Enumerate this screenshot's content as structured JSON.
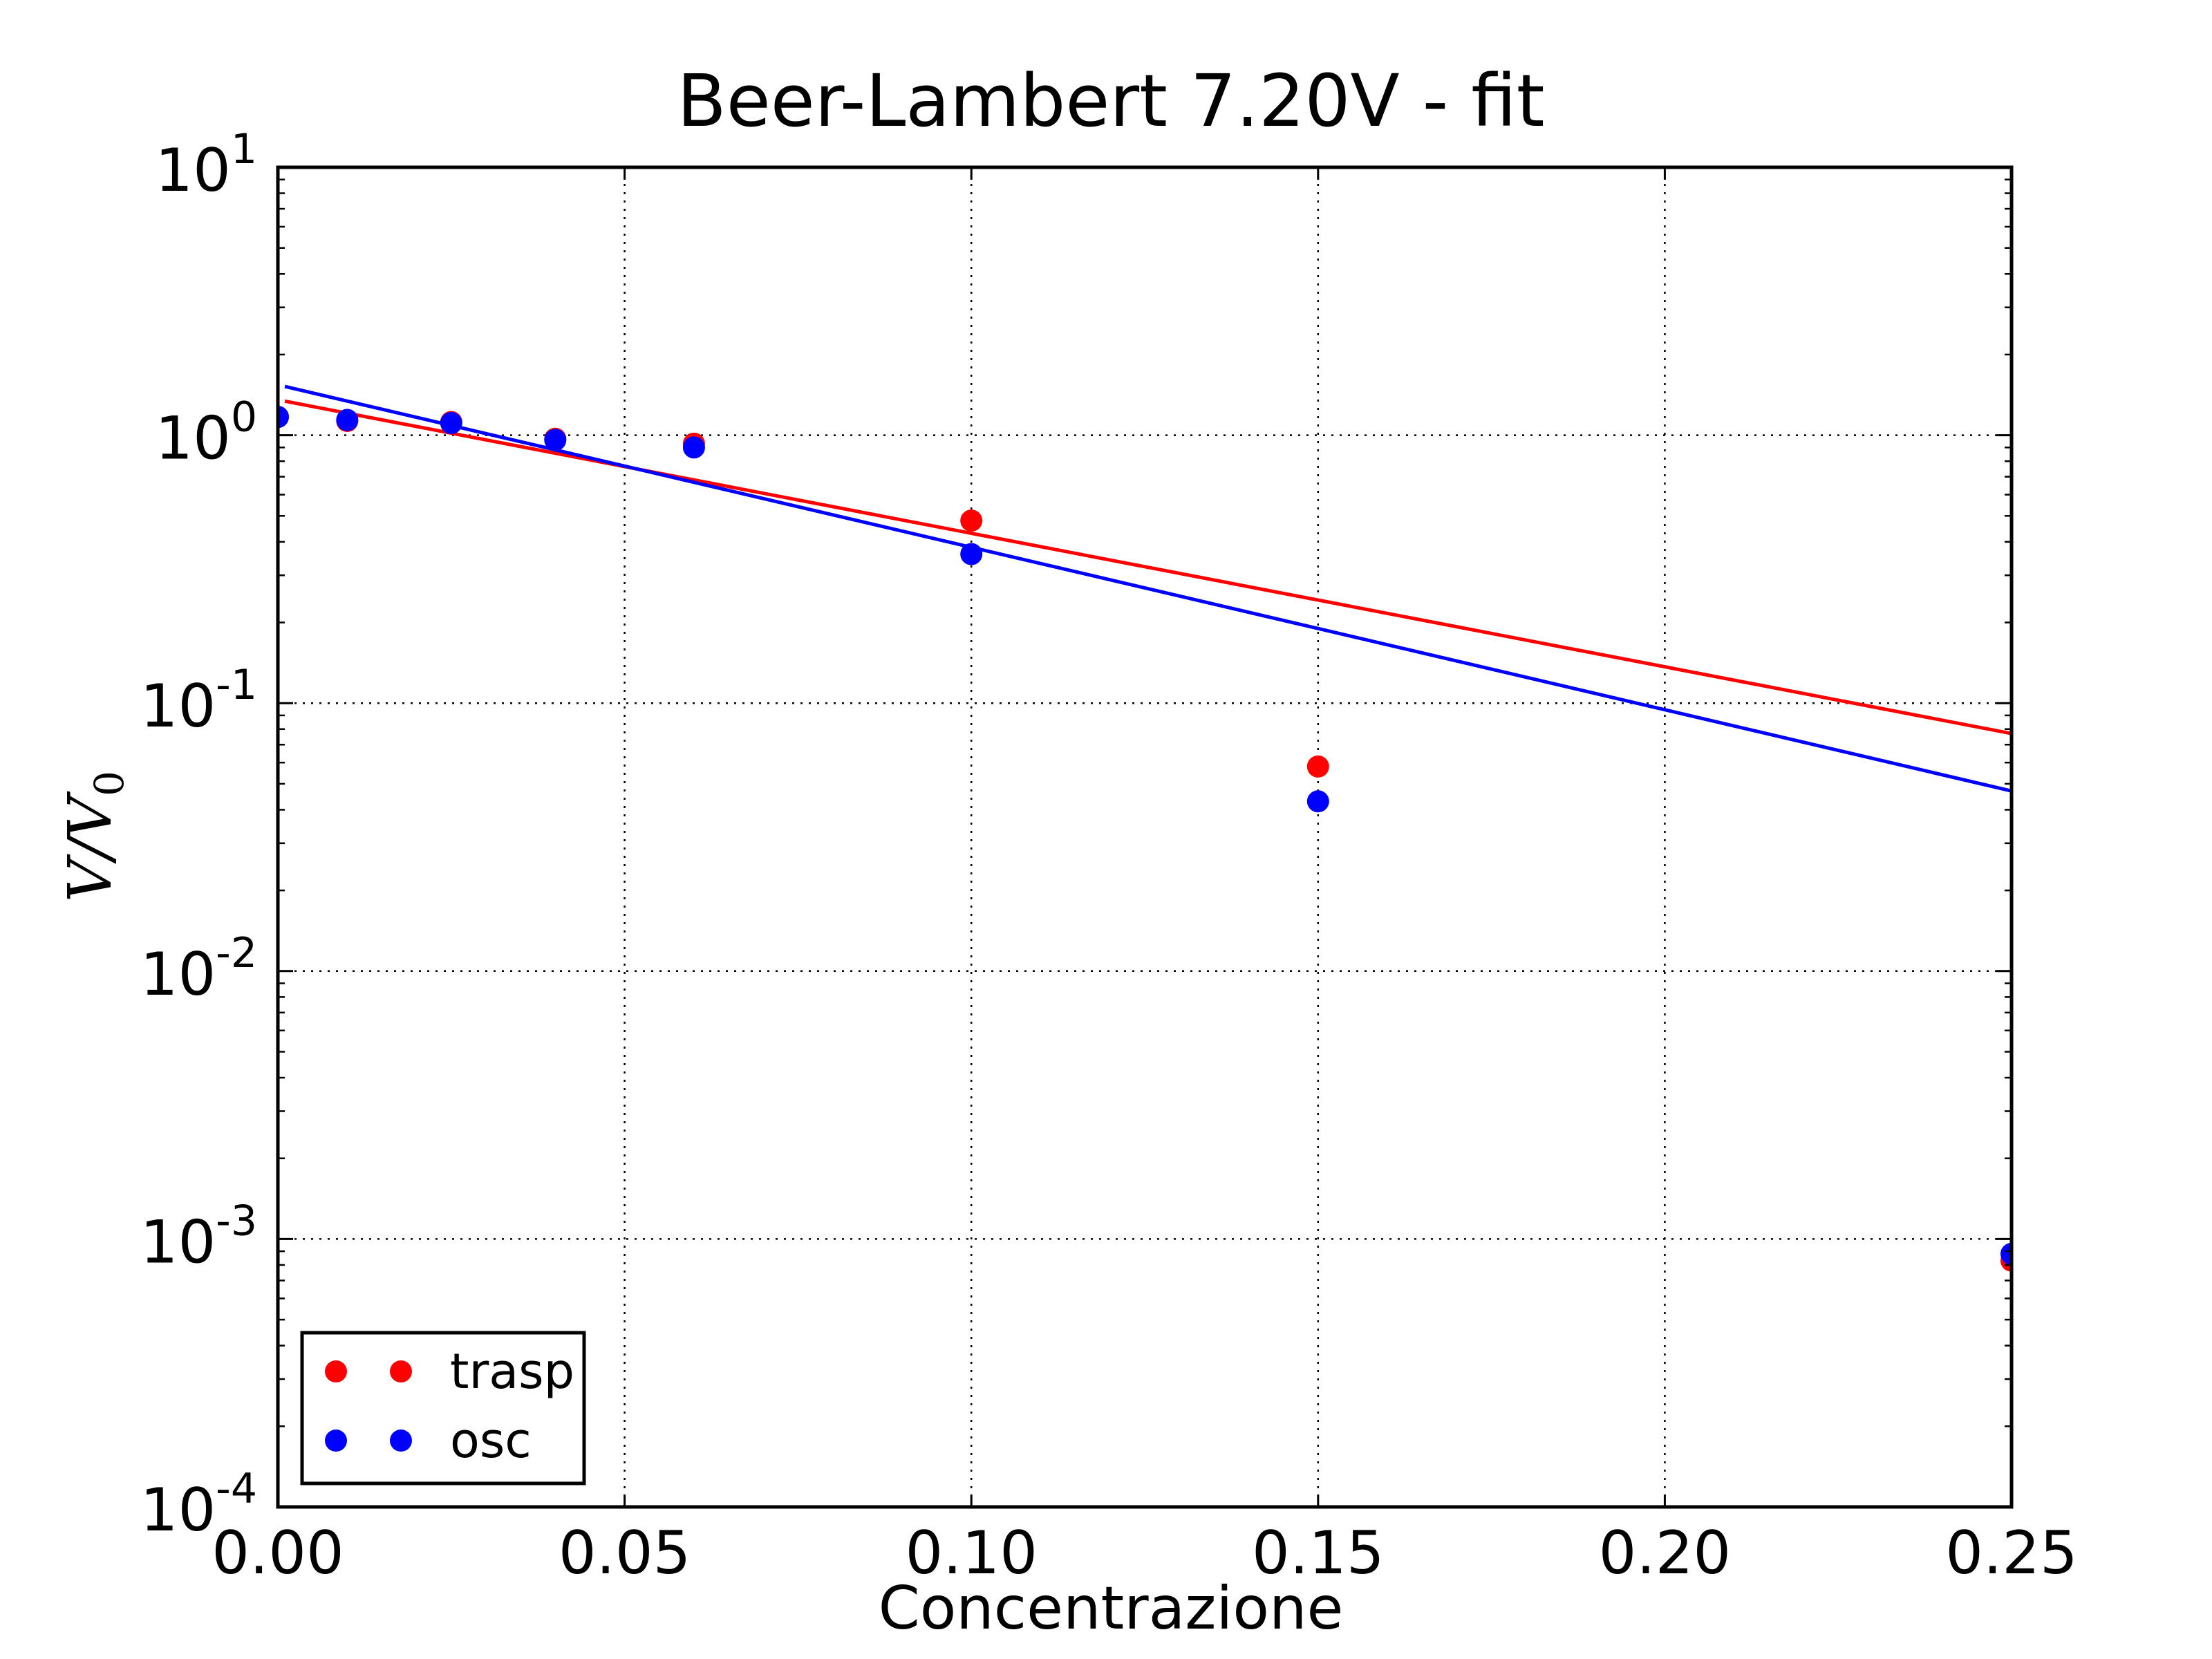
{
  "chart_data": {
    "type": "scatter",
    "title": "Beer-Lambert 7.20V - fit",
    "xlabel": "Concentrazione",
    "ylabel": "V/V0",
    "ylabel_parts": {
      "base": "V/V",
      "sub": "0"
    },
    "xlim": [
      0.0,
      0.25
    ],
    "ylim": [
      0.0001,
      10
    ],
    "yscale": "log",
    "grid": true,
    "legend_position": "lower-left",
    "x_ticks": [
      "0.00",
      "0.05",
      "0.10",
      "0.15",
      "0.20",
      "0.25"
    ],
    "x_tick_values": [
      0.0,
      0.05,
      0.1,
      0.15,
      0.2,
      0.25
    ],
    "y_ticks": [
      {
        "value": 10,
        "base": "10",
        "exp": "1"
      },
      {
        "value": 1,
        "base": "10",
        "exp": "0"
      },
      {
        "value": 0.1,
        "base": "10",
        "exp": "-1"
      },
      {
        "value": 0.01,
        "base": "10",
        "exp": "-2"
      },
      {
        "value": 0.001,
        "base": "10",
        "exp": "-3"
      },
      {
        "value": 0.0001,
        "base": "10",
        "exp": "-4"
      }
    ],
    "series": [
      {
        "name": "trasp",
        "color": "#ff0000",
        "points": [
          {
            "x": 0.0,
            "y": 1.17
          },
          {
            "x": 0.01,
            "y": 1.13
          },
          {
            "x": 0.025,
            "y": 1.12
          },
          {
            "x": 0.04,
            "y": 0.97
          },
          {
            "x": 0.06,
            "y": 0.93
          },
          {
            "x": 0.1,
            "y": 0.48
          },
          {
            "x": 0.15,
            "y": 0.058
          },
          {
            "x": 0.25,
            "y": 0.00083
          }
        ],
        "fit": {
          "x": [
            0.001,
            0.25
          ],
          "y": [
            1.34,
            0.077
          ]
        }
      },
      {
        "name": "osc",
        "color": "#0000ff",
        "points": [
          {
            "x": 0.0,
            "y": 1.17
          },
          {
            "x": 0.01,
            "y": 1.14
          },
          {
            "x": 0.025,
            "y": 1.11
          },
          {
            "x": 0.04,
            "y": 0.96
          },
          {
            "x": 0.06,
            "y": 0.9
          },
          {
            "x": 0.1,
            "y": 0.36
          },
          {
            "x": 0.15,
            "y": 0.043
          },
          {
            "x": 0.25,
            "y": 0.00088
          }
        ],
        "fit": {
          "x": [
            0.001,
            0.25
          ],
          "y": [
            1.52,
            0.047
          ]
        }
      }
    ]
  }
}
